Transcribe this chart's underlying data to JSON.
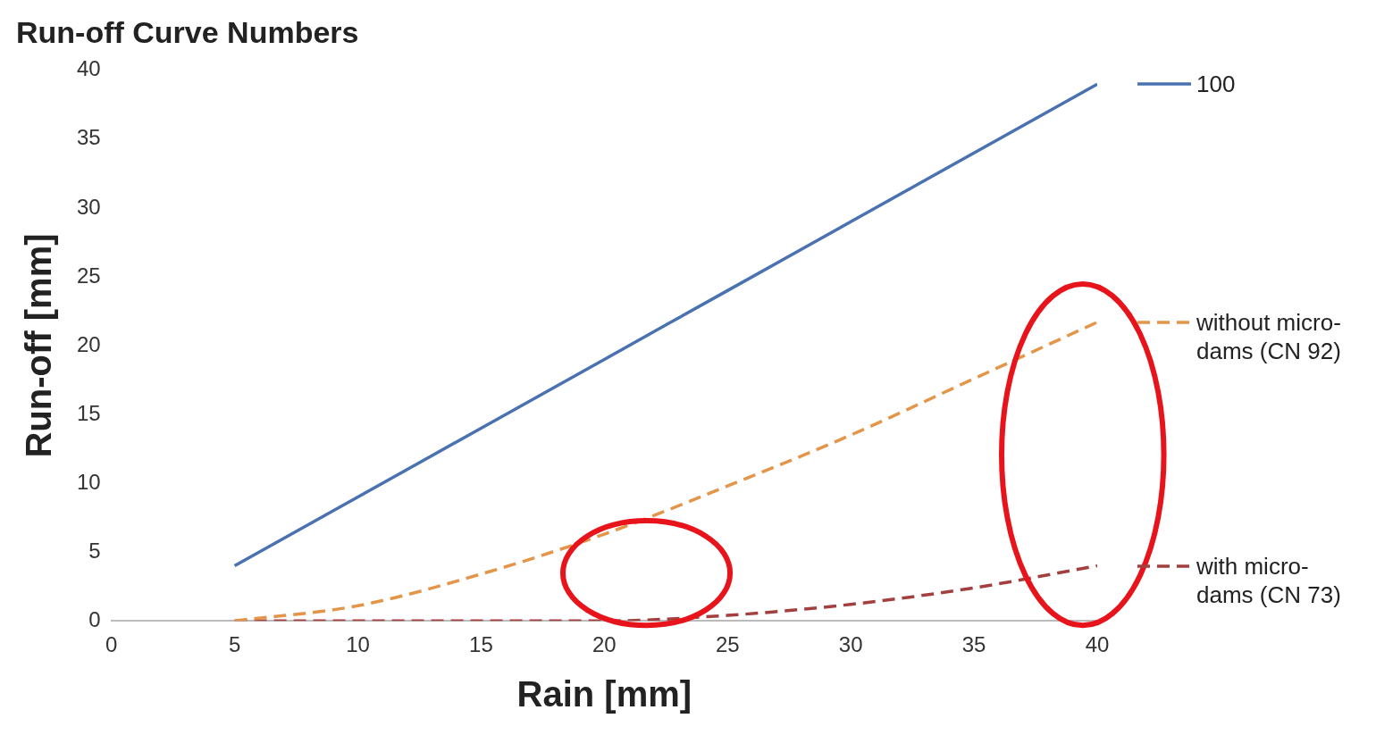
{
  "chart_data": {
    "type": "line",
    "title": "Run-off Curve Numbers",
    "xlabel": "Rain [mm]",
    "ylabel": "Run-off [mm]",
    "x": [
      5,
      10,
      15,
      20,
      25,
      30,
      35,
      40
    ],
    "series": [
      {
        "name": "100",
        "color": "#4a72b0",
        "line_style": "solid",
        "values": [
          4,
          9,
          14,
          19,
          24,
          29,
          34,
          39
        ]
      },
      {
        "name": "without micro-dams (CN 92)",
        "color": "#e3964a",
        "line_style": "dashed",
        "values": [
          0,
          1.1,
          3.4,
          6.3,
          9.8,
          13.5,
          17.6,
          21.7
        ]
      },
      {
        "name": "with micro-dams (CN 73)",
        "color": "#a3403f",
        "line_style": "dashed",
        "values": [
          0,
          0,
          0,
          0,
          0.4,
          1.2,
          2.4,
          4.0
        ]
      }
    ],
    "xlim": [
      0,
      40
    ],
    "xticks": [
      0,
      5,
      10,
      15,
      20,
      25,
      30,
      35,
      40
    ],
    "ylim": [
      0,
      40
    ],
    "yticks": [
      0,
      5,
      10,
      15,
      20,
      25,
      30,
      35,
      40
    ],
    "grid": false,
    "legend": "right",
    "marker": "none"
  }
}
